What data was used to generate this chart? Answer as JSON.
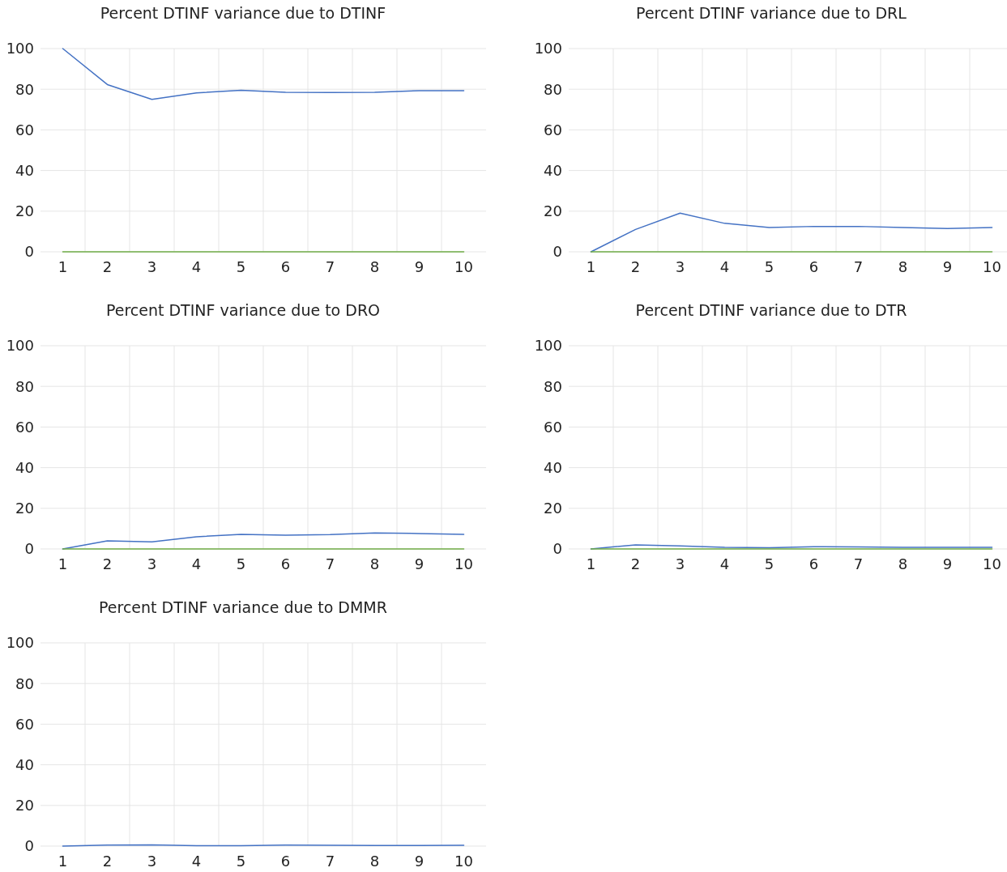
{
  "chart_data": [
    {
      "type": "line",
      "title": "Percent DTINF variance due to DTINF",
      "categories": [
        "1",
        "2",
        "3",
        "4",
        "5",
        "6",
        "7",
        "8",
        "9",
        "10"
      ],
      "series": [
        {
          "color": "#4472c4",
          "values": [
            100,
            82.3,
            75,
            78.2,
            79.5,
            78.5,
            78.4,
            78.5,
            79.3,
            79.3
          ]
        },
        {
          "color": "#70ad47",
          "values": [
            0,
            0,
            0,
            0,
            0,
            0,
            0,
            0,
            0,
            0
          ]
        }
      ],
      "ylim": [
        0,
        100
      ],
      "yticks": [
        0,
        20,
        40,
        60,
        80,
        100
      ],
      "grid": true
    },
    {
      "type": "line",
      "title": "Percent DTINF variance due to DRL",
      "categories": [
        "1",
        "2",
        "3",
        "4",
        "5",
        "6",
        "7",
        "8",
        "9",
        "10"
      ],
      "series": [
        {
          "color": "#4472c4",
          "values": [
            0,
            11,
            19,
            14,
            12,
            12.5,
            12.5,
            12,
            11.5,
            12
          ]
        },
        {
          "color": "#70ad47",
          "values": [
            0,
            0,
            0,
            0,
            0,
            0,
            0,
            0,
            0,
            0
          ]
        }
      ],
      "ylim": [
        0,
        100
      ],
      "yticks": [
        0,
        20,
        40,
        60,
        80,
        100
      ],
      "grid": true
    },
    {
      "type": "line",
      "title": "Percent DTINF variance due to DRO",
      "categories": [
        "1",
        "2",
        "3",
        "4",
        "5",
        "6",
        "7",
        "8",
        "9",
        "10"
      ],
      "series": [
        {
          "color": "#4472c4",
          "values": [
            0,
            4,
            3.5,
            6,
            7.2,
            6.8,
            7.1,
            7.9,
            7.6,
            7.2
          ]
        },
        {
          "color": "#70ad47",
          "values": [
            0,
            0,
            0,
            0,
            0,
            0,
            0,
            0,
            0,
            0
          ]
        }
      ],
      "ylim": [
        0,
        100
      ],
      "yticks": [
        0,
        20,
        40,
        60,
        80,
        100
      ],
      "grid": true
    },
    {
      "type": "line",
      "title": "Percent DTINF variance due to DTR",
      "categories": [
        "1",
        "2",
        "3",
        "4",
        "5",
        "6",
        "7",
        "8",
        "9",
        "10"
      ],
      "series": [
        {
          "color": "#4472c4",
          "values": [
            0,
            2,
            1.5,
            0.8,
            0.6,
            1.1,
            1,
            0.8,
            0.8,
            0.8
          ]
        },
        {
          "color": "#70ad47",
          "values": [
            0,
            0,
            0,
            0,
            0,
            0,
            0,
            0,
            0,
            0
          ]
        }
      ],
      "ylim": [
        0,
        100
      ],
      "yticks": [
        0,
        20,
        40,
        60,
        80,
        100
      ],
      "grid": true
    },
    {
      "type": "line",
      "title": "Percent DTINF variance due to DMMR",
      "categories": [
        "1",
        "2",
        "3",
        "4",
        "5",
        "6",
        "7",
        "8",
        "9",
        "10"
      ],
      "series": [
        {
          "color": "#4472c4",
          "values": [
            0,
            0.5,
            0.6,
            0.2,
            0.2,
            0.5,
            0.4,
            0.3,
            0.3,
            0.4
          ]
        }
      ],
      "ylim": [
        0,
        100
      ],
      "yticks": [
        0,
        20,
        40,
        60,
        80,
        100
      ],
      "grid": true
    }
  ]
}
